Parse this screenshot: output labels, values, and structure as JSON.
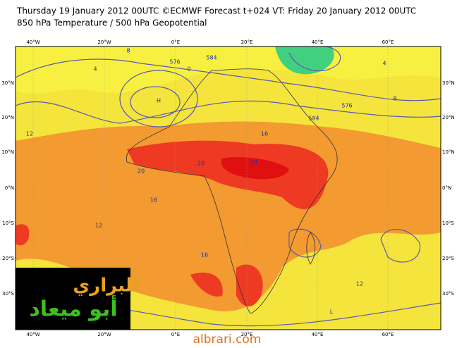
{
  "header": {
    "title": "Thursday 19 January 2012 00UTC ©ECMWF Forecast t+024 VT: Friday 20 January 2012 00UTC",
    "subtitle": "850 hPa Temperature / 500 hPa Geopotential"
  },
  "map": {
    "lon_labels": [
      "40°W",
      "20°W",
      "0°E",
      "20°E",
      "40°E",
      "60°E"
    ],
    "lat_labels": [
      "30°N",
      "20°N",
      "10°N",
      "0°N",
      "10°S",
      "20°S",
      "30°S"
    ],
    "contour_labels": [
      "8",
      "576",
      "0",
      "584",
      "4",
      "12",
      "16",
      "20",
      "24",
      "20",
      "16",
      "12",
      "576",
      "584",
      "8",
      "4",
      "12",
      "16",
      "H",
      "L"
    ]
  },
  "logo": {
    "line1": "البراري",
    "line2": "أبو ميعاد"
  },
  "watermark": "albrari.com"
}
